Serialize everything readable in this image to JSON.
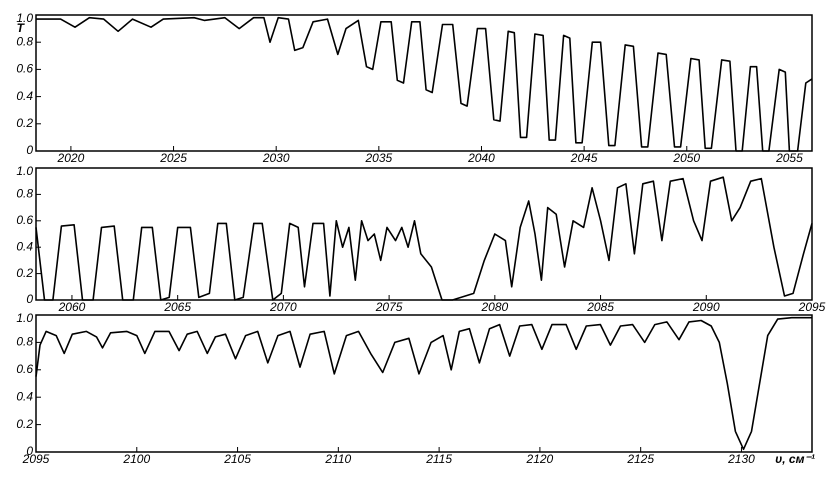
{
  "chart_data": [
    {
      "type": "line",
      "color": "#000000",
      "ylabel": "T",
      "xlim": [
        2018.3,
        2056.1
      ],
      "ylim": [
        0,
        1
      ],
      "xticks": [
        2020,
        2025,
        2030,
        2035,
        2040,
        2045,
        2050,
        2055
      ],
      "yticks": [
        0,
        0.2,
        0.4,
        0.6,
        0.8,
        {
          "value": 1,
          "label": "1.0"
        }
      ],
      "x": [
        2018.3,
        2019.5,
        2020.2,
        2020.9,
        2021.6,
        2022.3,
        2023.0,
        2023.9,
        2024.5,
        2026.0,
        2026.5,
        2027.5,
        2028.2,
        2028.9,
        2029.4,
        2029.7,
        2030.1,
        2030.6,
        2030.9,
        2031.3,
        2031.8,
        2032.5,
        2033.0,
        2033.4,
        2034.0,
        2034.4,
        2034.7,
        2035.1,
        2035.6,
        2035.9,
        2036.2,
        2036.6,
        2037.0,
        2037.3,
        2037.6,
        2038.1,
        2038.6,
        2039.0,
        2039.3,
        2039.8,
        2040.2,
        2040.6,
        2040.9,
        2041.3,
        2041.6,
        2041.9,
        2042.2,
        2042.6,
        2043.0,
        2043.3,
        2043.6,
        2044.0,
        2044.3,
        2044.6,
        2044.9,
        2045.4,
        2045.8,
        2046.2,
        2046.5,
        2047.0,
        2047.4,
        2047.8,
        2048.1,
        2048.6,
        2049.0,
        2049.4,
        2049.7,
        2050.2,
        2050.6,
        2050.9,
        2051.2,
        2051.7,
        2052.1,
        2052.4,
        2052.7,
        2053.1,
        2053.4,
        2053.7,
        2054.0,
        2054.5,
        2054.8,
        2055.0,
        2055.4,
        2055.8,
        2056.1
      ],
      "values": [
        0.97,
        0.97,
        0.91,
        0.98,
        0.97,
        0.88,
        0.97,
        0.91,
        0.97,
        0.98,
        0.96,
        0.98,
        0.9,
        0.98,
        0.98,
        0.8,
        0.98,
        0.97,
        0.74,
        0.76,
        0.95,
        0.97,
        0.71,
        0.9,
        0.96,
        0.62,
        0.6,
        0.95,
        0.95,
        0.52,
        0.5,
        0.95,
        0.95,
        0.45,
        0.43,
        0.93,
        0.93,
        0.35,
        0.33,
        0.9,
        0.9,
        0.23,
        0.22,
        0.88,
        0.87,
        0.1,
        0.1,
        0.86,
        0.85,
        0.08,
        0.08,
        0.85,
        0.83,
        0.06,
        0.06,
        0.8,
        0.8,
        0.04,
        0.04,
        0.78,
        0.77,
        0.03,
        0.03,
        0.72,
        0.71,
        0.03,
        0.03,
        0.68,
        0.67,
        0.02,
        0.02,
        0.67,
        0.66,
        0,
        0,
        0.62,
        0.62,
        0,
        0,
        0.6,
        0.58,
        0,
        0,
        0.5,
        0.53
      ]
    },
    {
      "type": "line",
      "color": "#000000",
      "xlim": [
        2058.3,
        2095
      ],
      "ylim": [
        0,
        1
      ],
      "xticks": [
        2060,
        2065,
        2070,
        2075,
        2080,
        2085,
        2090,
        2095
      ],
      "yticks": [
        0,
        0.2,
        0.4,
        0.6,
        0.8,
        {
          "value": 1,
          "label": "1.0"
        }
      ],
      "x": [
        2058.3,
        2058.7,
        2059.1,
        2059.5,
        2060.1,
        2060.5,
        2061.0,
        2061.4,
        2062.0,
        2062.4,
        2062.9,
        2063.3,
        2063.8,
        2064.2,
        2064.6,
        2065.0,
        2065.6,
        2066.0,
        2066.5,
        2066.9,
        2067.3,
        2067.7,
        2068.1,
        2068.6,
        2069.0,
        2069.5,
        2069.9,
        2070.3,
        2070.7,
        2071.0,
        2071.4,
        2071.9,
        2072.2,
        2072.5,
        2072.8,
        2073.1,
        2073.4,
        2073.7,
        2074.0,
        2074.3,
        2074.6,
        2074.9,
        2075.3,
        2075.6,
        2075.9,
        2076.2,
        2076.5,
        2077.0,
        2077.5,
        2078.0,
        2079.0,
        2079.5,
        2080.0,
        2080.5,
        2080.8,
        2081.2,
        2081.6,
        2081.9,
        2082.2,
        2082.5,
        2082.9,
        2083.3,
        2083.7,
        2084.2,
        2084.6,
        2085.0,
        2085.4,
        2085.8,
        2086.2,
        2086.6,
        2087.0,
        2087.5,
        2087.9,
        2088.3,
        2088.9,
        2089.4,
        2089.8,
        2090.2,
        2090.8,
        2091.2,
        2091.6,
        2092.1,
        2092.6,
        2093.2,
        2093.7,
        2094.1,
        2094.6,
        2095.0
      ],
      "values": [
        0.55,
        0,
        0,
        0.56,
        0.57,
        0,
        0,
        0.55,
        0.56,
        0,
        0,
        0.55,
        0.55,
        0,
        0.02,
        0.55,
        0.55,
        0.02,
        0.05,
        0.58,
        0.58,
        0,
        0.02,
        0.58,
        0.58,
        0,
        0.05,
        0.58,
        0.55,
        0.1,
        0.58,
        0.58,
        0.03,
        0.6,
        0.4,
        0.55,
        0.15,
        0.6,
        0.45,
        0.5,
        0.3,
        0.55,
        0.45,
        0.55,
        0.4,
        0.6,
        0.35,
        0.25,
        0,
        0,
        0.05,
        0.3,
        0.5,
        0.45,
        0.1,
        0.55,
        0.75,
        0.5,
        0.15,
        0.7,
        0.65,
        0.25,
        0.6,
        0.55,
        0.85,
        0.6,
        0.3,
        0.85,
        0.88,
        0.35,
        0.88,
        0.9,
        0.45,
        0.9,
        0.92,
        0.6,
        0.45,
        0.9,
        0.93,
        0.6,
        0.7,
        0.9,
        0.92,
        0.4,
        0.03,
        0.05,
        0.35,
        0.58
      ]
    },
    {
      "type": "line",
      "color": "#000000",
      "xlabel": "υ, см⁻¹",
      "xlim": [
        2095,
        2133.5
      ],
      "ylim": [
        0,
        1
      ],
      "xticks": [
        2095,
        2100,
        2105,
        2110,
        2115,
        2120,
        2125,
        2130
      ],
      "yticks": [
        0,
        0.2,
        0.4,
        0.6,
        0.8,
        {
          "value": 1,
          "label": "1.0"
        }
      ],
      "x": [
        2095.0,
        2095.2,
        2095.5,
        2096.0,
        2096.4,
        2096.8,
        2097.5,
        2098.0,
        2098.3,
        2098.7,
        2099.5,
        2100.0,
        2100.4,
        2100.9,
        2101.6,
        2102.1,
        2102.5,
        2103.0,
        2103.5,
        2103.9,
        2104.4,
        2104.9,
        2105.4,
        2106.0,
        2106.5,
        2107.0,
        2107.6,
        2108.1,
        2108.6,
        2109.3,
        2109.8,
        2110.4,
        2111.0,
        2111.6,
        2112.2,
        2112.8,
        2113.5,
        2114.0,
        2114.6,
        2115.2,
        2115.6,
        2116.0,
        2116.5,
        2117.0,
        2117.5,
        2118.0,
        2118.5,
        2119.0,
        2119.6,
        2120.1,
        2120.6,
        2121.3,
        2121.8,
        2122.3,
        2123.0,
        2123.5,
        2124.0,
        2124.6,
        2125.2,
        2125.7,
        2126.3,
        2126.9,
        2127.4,
        2128.0,
        2128.5,
        2128.9,
        2129.3,
        2129.7,
        2130.1,
        2130.5,
        2130.9,
        2131.3,
        2131.8,
        2132.5,
        2133.5
      ],
      "values": [
        0.55,
        0.78,
        0.88,
        0.85,
        0.72,
        0.86,
        0.88,
        0.84,
        0.76,
        0.87,
        0.88,
        0.85,
        0.72,
        0.88,
        0.88,
        0.74,
        0.86,
        0.88,
        0.72,
        0.84,
        0.86,
        0.68,
        0.85,
        0.88,
        0.65,
        0.85,
        0.88,
        0.62,
        0.86,
        0.88,
        0.57,
        0.85,
        0.88,
        0.72,
        0.58,
        0.8,
        0.83,
        0.57,
        0.8,
        0.85,
        0.6,
        0.88,
        0.9,
        0.65,
        0.9,
        0.93,
        0.7,
        0.92,
        0.93,
        0.75,
        0.93,
        0.93,
        0.75,
        0.92,
        0.93,
        0.78,
        0.92,
        0.93,
        0.8,
        0.93,
        0.95,
        0.82,
        0.95,
        0.96,
        0.92,
        0.8,
        0.5,
        0.15,
        0.02,
        0.15,
        0.5,
        0.85,
        0.97,
        0.98,
        0.98
      ]
    }
  ]
}
